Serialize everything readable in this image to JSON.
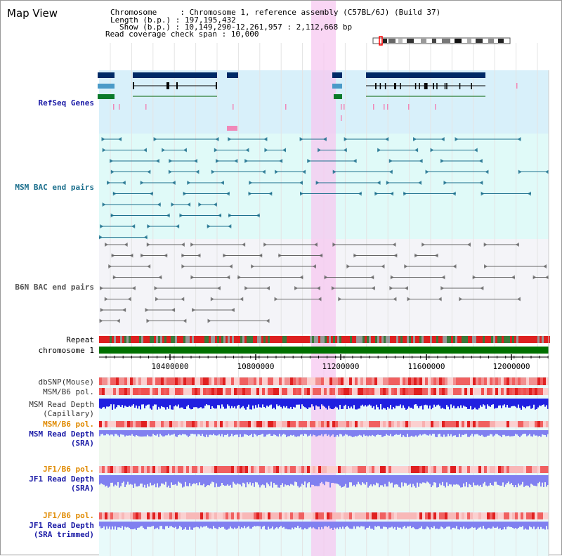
{
  "title": "Map View",
  "info": {
    "chromosome": "Chromosome     : Chromosome 1, reference assembly (C57BL/6J) (Build 37)",
    "length": "Length (b.p.) : 197,195,432",
    "show": "Show (b.p.) : 10,149,290-12,261,957 : 2,112,668 bp",
    "coverage": "Read coverage check span : 10,000"
  },
  "tracks": {
    "refseq": "RefSeq Genes",
    "msm_bac": "MSM BAC end pairs",
    "b6n_bac": "B6N BAC end pairs",
    "repeat": "Repeat",
    "chromosome": "chromosome 1",
    "dbsnp": "dbSNP(Mouse)",
    "msm_b6_pol": "MSM/B6 pol.",
    "msm_depth_cap_1": "MSM Read Depth",
    "msm_depth_cap_2": "(Capillary)",
    "msm_b6_pol2": "MSM/B6 pol.",
    "msm_depth_sra_1": "MSM Read Depth",
    "msm_depth_sra_2": "(SRA)",
    "jf1_b6_pol": "JF1/B6 pol.",
    "jf1_depth_sra_1": "JF1 Read Depth",
    "jf1_depth_sra_2": "(SRA)",
    "jf1_b6_pol2": "JF1/B6 pol.",
    "jf1_depth_trim_1": "JF1 Read Depth",
    "jf1_depth_trim_2": "(SRA trimmed)"
  },
  "axis_ticks": [
    "10400000",
    "10800000",
    "11200000",
    "11600000",
    "12000000"
  ],
  "colors": {
    "refseq_label": "#1a1aa6",
    "bac_msm_label": "#1a6e8c",
    "b6n_label": "#444444",
    "pol_label_orange": "#e08a00",
    "depth_label_blue": "#1a1aa6",
    "highlight": "#f7c8f0",
    "refseq_bg": "#d8f0fa",
    "msm_bg": "#e0faf8",
    "b6n_bg": "#f4f4f8",
    "chromosome_bar": "#007000",
    "depth_blue": "#2020e0",
    "depth_light": "#8080f0"
  }
}
